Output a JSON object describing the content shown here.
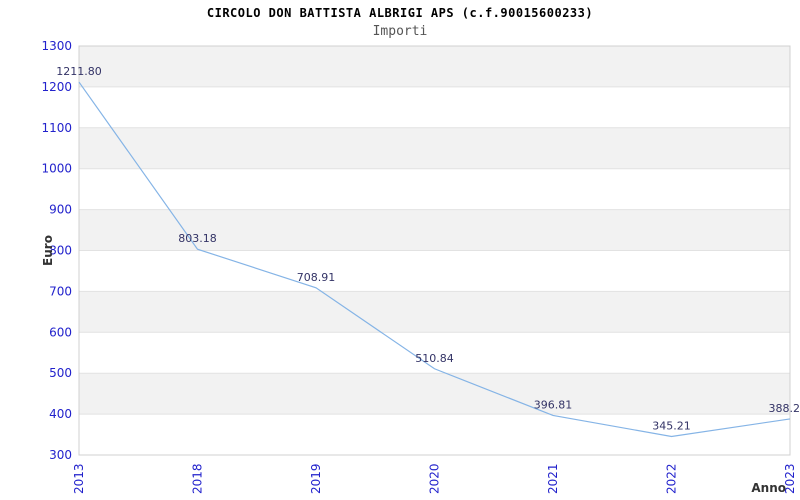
{
  "chart_data": {
    "type": "line",
    "title": "CIRCOLO DON BATTISTA ALBRIGI APS (c.f.90015600233)",
    "subtitle": "Importi",
    "xlabel": "Anno",
    "ylabel": "Euro",
    "categories": [
      "2013",
      "2018",
      "2019",
      "2020",
      "2021",
      "2022",
      "2023"
    ],
    "values": [
      1211.8,
      803.18,
      708.91,
      510.84,
      396.81,
      345.21,
      388.2
    ],
    "point_labels": [
      "1211.80",
      "803.18",
      "708.91",
      "510.84",
      "396.81",
      "345.21",
      "388.2"
    ],
    "ylim": [
      300,
      1300
    ],
    "ytick_step": 100,
    "ytick_labels": [
      "300",
      "400",
      "500",
      "600",
      "700",
      "800",
      "900",
      "1000",
      "1100",
      "1200",
      "1300"
    ],
    "grid": "horizontal-lines-with-alternating-bands",
    "legend": "none",
    "colors": {
      "line": "#85b4e6",
      "tick_label": "#2222cc",
      "point_label": "#333366",
      "band_fill": "#f2f2f2",
      "gridline": "#e2e2e2",
      "plot_border": "#d0d0d0",
      "title": "#000000",
      "subtitle": "#555555",
      "axis_label": "#333333",
      "background": "#ffffff"
    }
  }
}
